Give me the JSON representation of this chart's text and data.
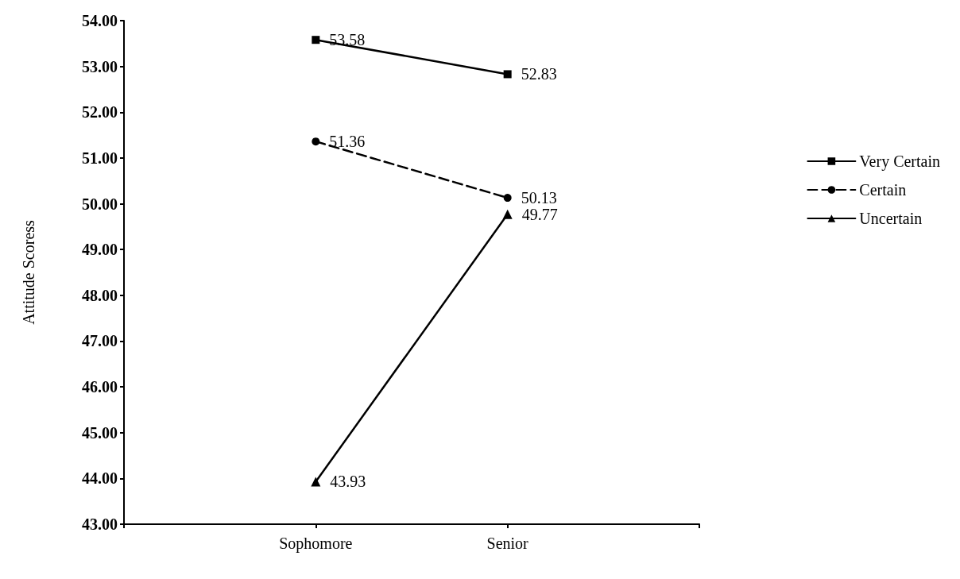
{
  "chart_data": {
    "type": "line",
    "ylabel": "Attitude Scoress",
    "categories": [
      null,
      "Sophomore",
      "Senior",
      null
    ],
    "series": [
      {
        "name": "Very Certain",
        "color": "#000000",
        "values": [
          null,
          53.58,
          52.83,
          null
        ],
        "marker": "square",
        "line_style": "solid"
      },
      {
        "name": "Certain",
        "color": "#000000",
        "values": [
          null,
          51.36,
          50.13,
          null
        ],
        "marker": "circle",
        "line_style": "dashed"
      },
      {
        "name": "Uncertain",
        "color": "#000000",
        "values": [
          null,
          43.93,
          49.77,
          null
        ],
        "marker": "triangle",
        "line_style": "solid"
      }
    ],
    "ylim": [
      43,
      54
    ],
    "yticks": [
      {
        "value": 43,
        "label": "43.00"
      },
      {
        "value": 44,
        "label": "44.00"
      },
      {
        "value": 45,
        "label": "45.00"
      },
      {
        "value": 46,
        "label": "46.00"
      },
      {
        "value": 47,
        "label": "47.00"
      },
      {
        "value": 48,
        "label": "48.00"
      },
      {
        "value": 49,
        "label": "49.00"
      },
      {
        "value": 50,
        "label": "50.00"
      },
      {
        "value": 51,
        "label": "51.00"
      },
      {
        "value": 52,
        "label": "52.00"
      },
      {
        "value": 53,
        "label": "53.00"
      },
      {
        "value": 54,
        "label": "54.00"
      }
    ],
    "data_labels": true,
    "grid": false,
    "legend": "right"
  }
}
